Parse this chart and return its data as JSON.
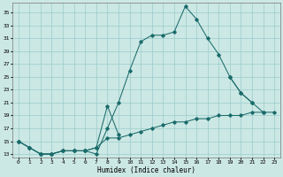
{
  "xlabel": "Humidex (Indice chaleur)",
  "bg_color": "#cce8e4",
  "grid_color": "#99cccc",
  "line_color": "#1a6b6b",
  "xlim": [
    -0.5,
    23.5
  ],
  "ylim": [
    12.5,
    36.5
  ],
  "yticks": [
    13,
    15,
    17,
    19,
    21,
    23,
    25,
    27,
    29,
    31,
    33,
    35
  ],
  "xticks": [
    0,
    1,
    2,
    3,
    4,
    5,
    6,
    7,
    8,
    9,
    10,
    11,
    12,
    13,
    14,
    15,
    16,
    17,
    18,
    19,
    20,
    21,
    22,
    23
  ],
  "series1_x": [
    0,
    1,
    2,
    3,
    4,
    5,
    6,
    7,
    8,
    9,
    10,
    11,
    12,
    13,
    14,
    15,
    16,
    17,
    18,
    19,
    20,
    21
  ],
  "series1_y": [
    15,
    14,
    13,
    13,
    13.5,
    13.5,
    13.5,
    13,
    17,
    21,
    26,
    30.5,
    31.5,
    31.5,
    32,
    36,
    34,
    31,
    28.5,
    25,
    22.5,
    21
  ],
  "series2_x": [
    0,
    1,
    2,
    3,
    4,
    5,
    6,
    7,
    8,
    9,
    19,
    20,
    21,
    22
  ],
  "series2_y": [
    15,
    14,
    13,
    13,
    13.5,
    13.5,
    13.5,
    14,
    20.5,
    16,
    25,
    22.5,
    21,
    19.5
  ],
  "series3_x": [
    0,
    1,
    2,
    3,
    4,
    5,
    6,
    7,
    8,
    9,
    10,
    11,
    12,
    13,
    14,
    15,
    16,
    17,
    18,
    19,
    20,
    21,
    22,
    23
  ],
  "series3_y": [
    15,
    14,
    13,
    13,
    13.5,
    13.5,
    13.5,
    14,
    15.5,
    15.5,
    16,
    16.5,
    17,
    17.5,
    18,
    18,
    18.5,
    18.5,
    19,
    19,
    19,
    19.5,
    19.5,
    19.5
  ]
}
